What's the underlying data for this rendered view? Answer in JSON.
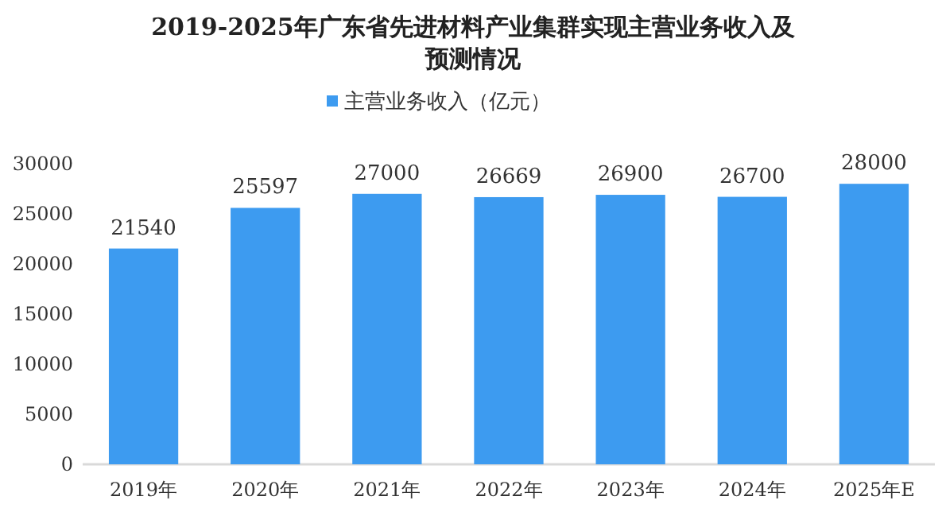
{
  "chart_data": {
    "type": "bar",
    "title": "2019-2025年广东省先进材料产业集群实现主营业务收入及预测情况",
    "categories": [
      "2019年",
      "2020年",
      "2021年",
      "2022年",
      "2023年",
      "2024年",
      "2025年E"
    ],
    "series": [
      {
        "name": "主营业务收入（亿元）",
        "color": "#3d9bf0",
        "values": [
          21540,
          25597,
          27000,
          26669,
          26900,
          26700,
          28000
        ]
      }
    ],
    "ylim": [
      0,
      30000
    ],
    "yticks": [
      0,
      5000,
      10000,
      15000,
      20000,
      25000,
      30000
    ],
    "grid": false,
    "legend": "top",
    "data_labels": true
  }
}
